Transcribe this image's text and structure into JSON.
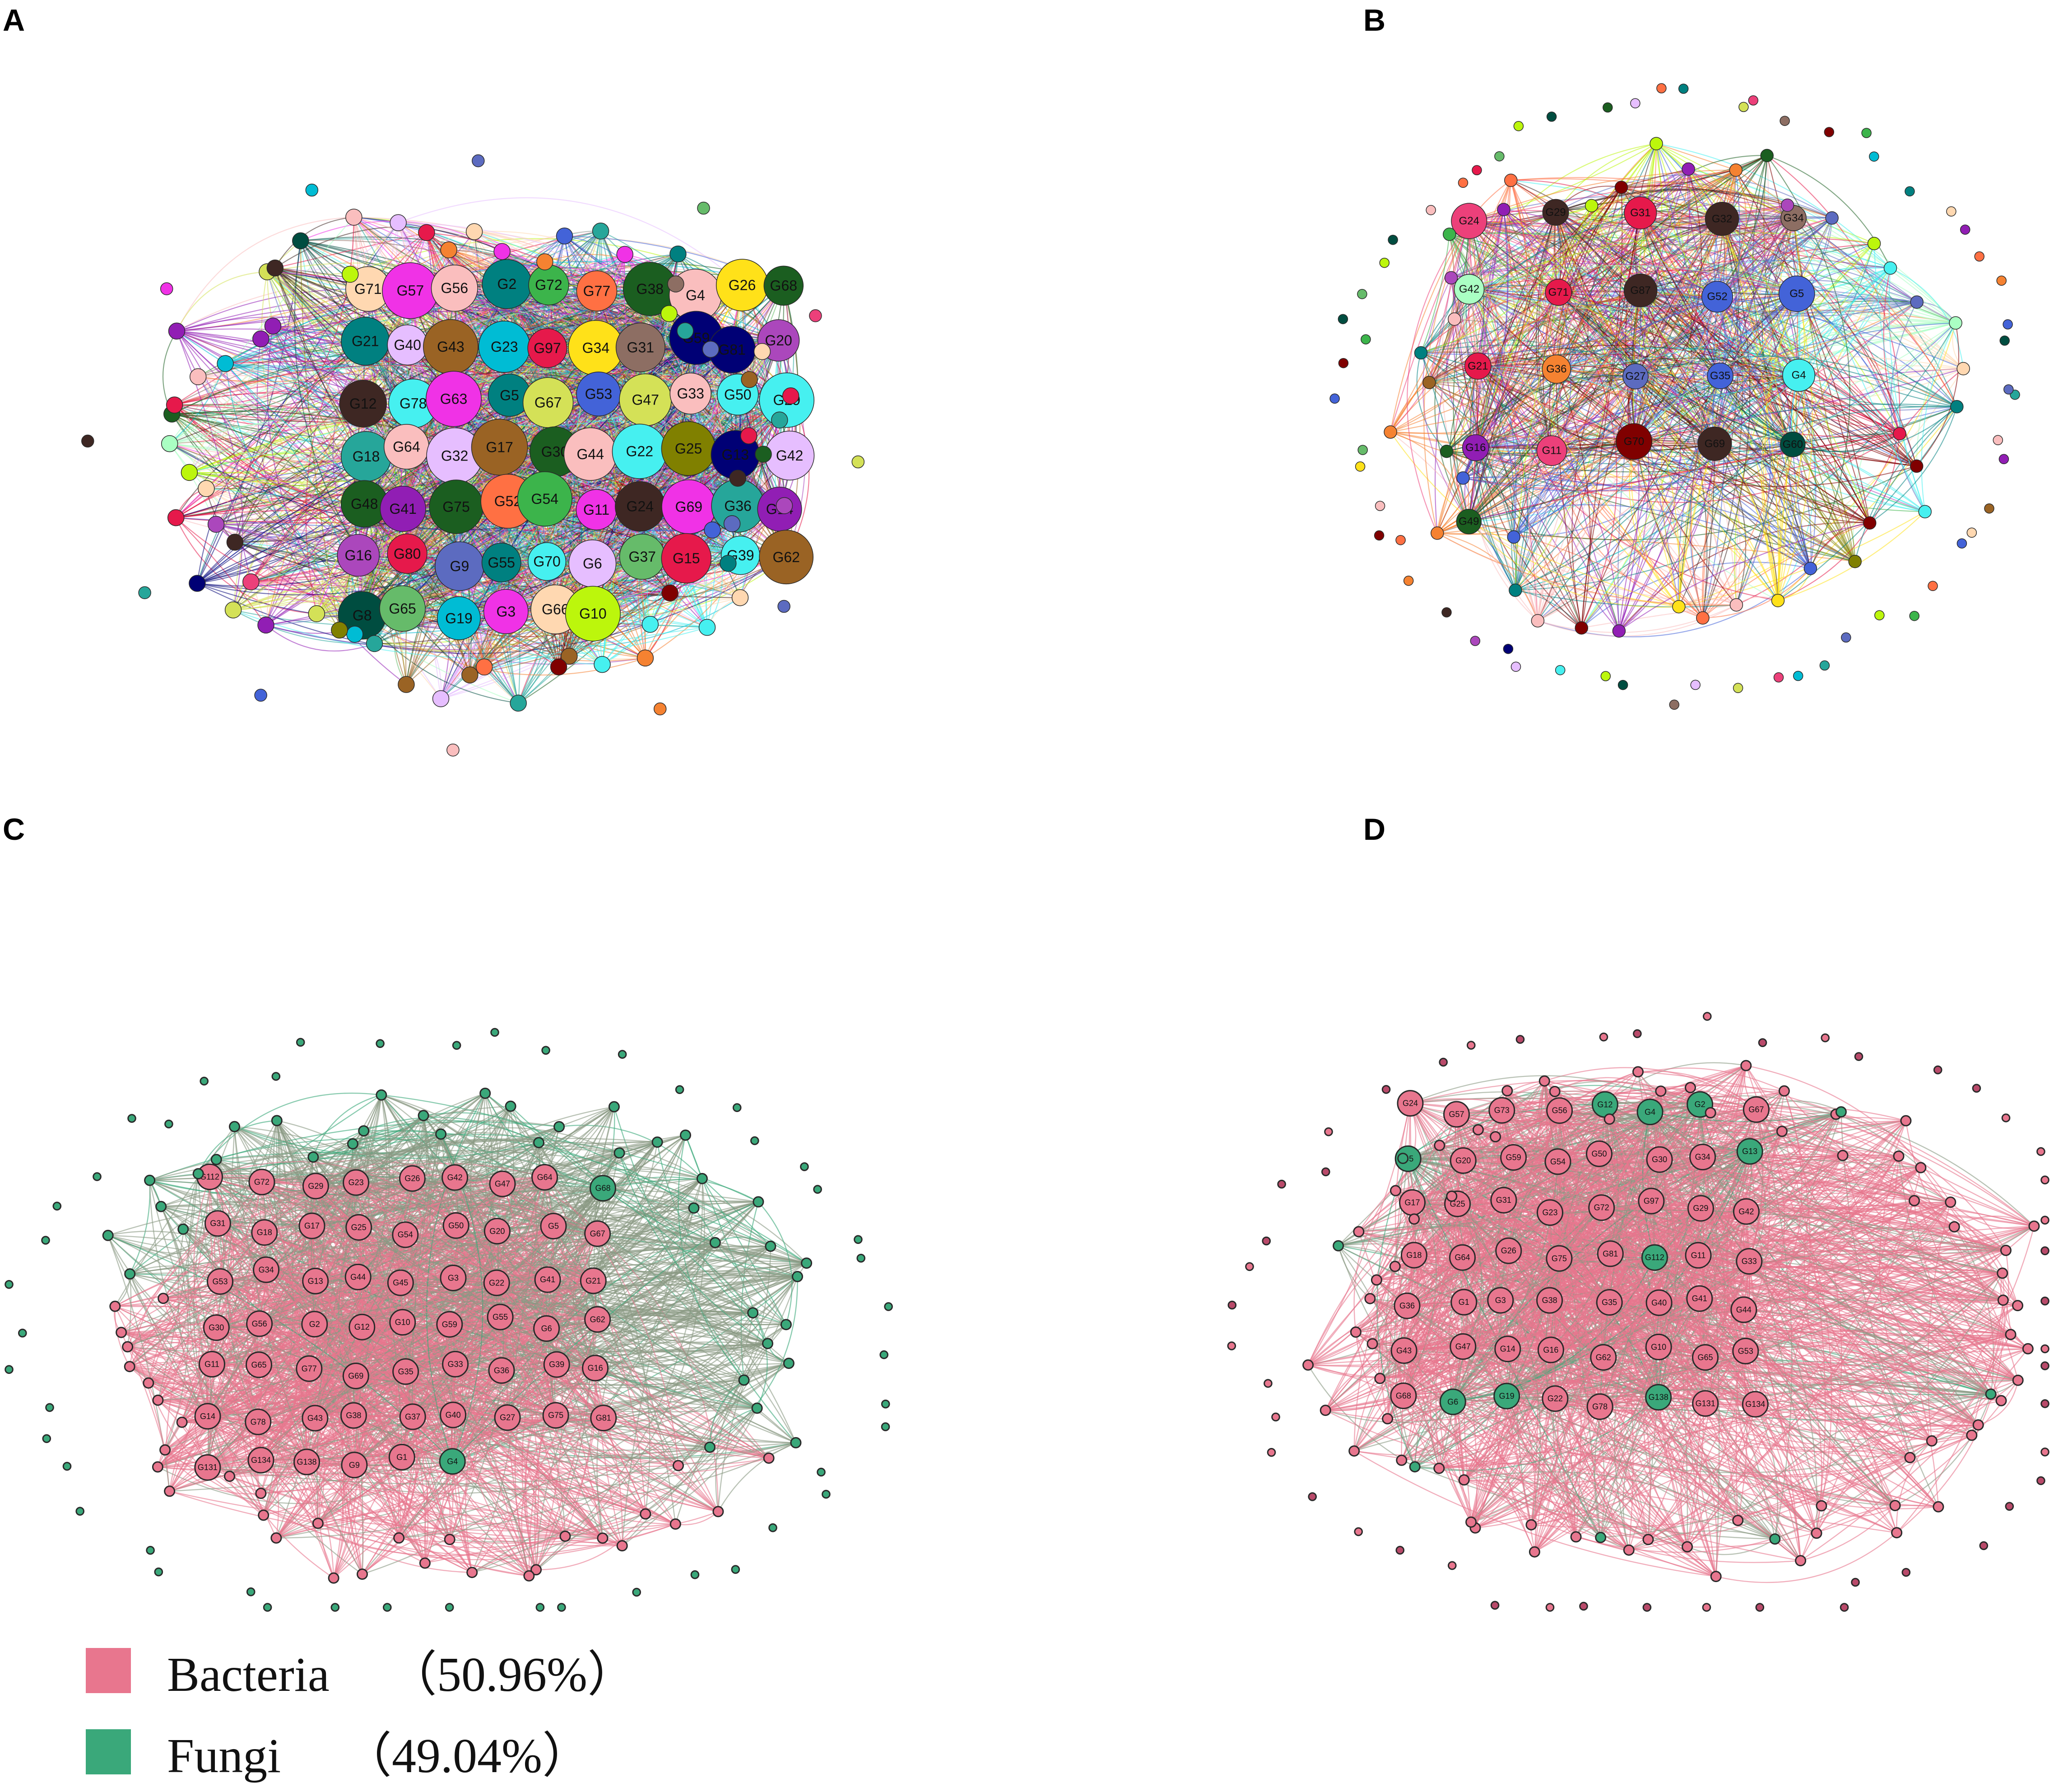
{
  "panels": [
    {
      "letter": "A",
      "style": "multicolor",
      "labels": [
        "G71",
        "G57",
        "G56",
        "G2",
        "G72",
        "G77",
        "G38",
        "G4",
        "G26",
        "G68",
        "G21",
        "G40",
        "G43",
        "G23",
        "G97",
        "G34",
        "G31",
        "G59",
        "G81",
        "G20",
        "G12",
        "G78",
        "G63",
        "G5",
        "G67",
        "G53",
        "G47",
        "G33",
        "G50",
        "G29",
        "G18",
        "G64",
        "G32",
        "G17",
        "G30",
        "G44",
        "G22",
        "G25",
        "G13",
        "G42",
        "G48",
        "G41",
        "G75",
        "G52",
        "G54",
        "G11",
        "G24",
        "G69",
        "G36",
        "G14",
        "G16",
        "G80",
        "G9",
        "G55",
        "G70",
        "G6",
        "G37",
        "G15",
        "G39",
        "G62",
        "G8",
        "G65",
        "G19",
        "G3",
        "G66",
        "G10"
      ]
    },
    {
      "letter": "B",
      "style": "multicolor",
      "labels": [
        "G24",
        "G29",
        "G31",
        "G32",
        "G34",
        "G42",
        "G71",
        "G87",
        "G52",
        "G5",
        "G21",
        "G36",
        "G27",
        "G35",
        "G4",
        "G16",
        "G11",
        "G70",
        "G69",
        "G60",
        "G49"
      ]
    },
    {
      "letter": "C",
      "style": "bacteria-fungi",
      "labels": [
        "G112",
        "G72",
        "G29",
        "G23",
        "G26",
        "G42",
        "G47",
        "G64",
        "G68",
        "G31",
        "G18",
        "G17",
        "G25",
        "G54",
        "G50",
        "G20",
        "G5",
        "G67",
        "G53",
        "G34",
        "G13",
        "G44",
        "G45",
        "G3",
        "G22",
        "G41",
        "G21",
        "G30",
        "G56",
        "G2",
        "G12",
        "G10",
        "G59",
        "G55",
        "G6",
        "G62",
        "G11",
        "G65",
        "G77",
        "G69",
        "G35",
        "G33",
        "G36",
        "G39",
        "G16",
        "G14",
        "G78",
        "G43",
        "G38",
        "G37",
        "G40",
        "G27",
        "G75",
        "G81",
        "G131",
        "G134",
        "G138",
        "G9",
        "G1",
        "G4"
      ]
    },
    {
      "letter": "D",
      "style": "bacteria-fungi",
      "labels": [
        "G24",
        "G57",
        "G73",
        "G56",
        "G12",
        "G4",
        "G2",
        "G67",
        "G5",
        "G20",
        "G59",
        "G54",
        "G50",
        "G30",
        "G34",
        "G13",
        "G17",
        "G25",
        "G31",
        "G23",
        "G72",
        "G97",
        "G29",
        "G42",
        "G18",
        "G64",
        "G26",
        "G75",
        "G81",
        "G112",
        "G11",
        "G33",
        "G36",
        "G1",
        "G3",
        "G38",
        "G35",
        "G40",
        "G41",
        "G44",
        "G43",
        "G47",
        "G14",
        "G16",
        "G62",
        "G10",
        "G65",
        "G53",
        "G68",
        "G6",
        "G19",
        "G22",
        "G78",
        "G138",
        "G131",
        "G134"
      ]
    }
  ],
  "legend": [
    {
      "label": "Bacteria",
      "percent": "（50.96%）",
      "color": "#e8768e"
    },
    {
      "label": "Fungi",
      "percent": "（49.04%）",
      "color": "#3aa87a"
    }
  ],
  "colors": {
    "bacteria_node": "#e8768e",
    "fungi_node": "#3aa87a",
    "bacteria_edge": "#e8768e",
    "fungi_edge": "#3aa87a",
    "mixed_edge": "#8a9a84"
  }
}
